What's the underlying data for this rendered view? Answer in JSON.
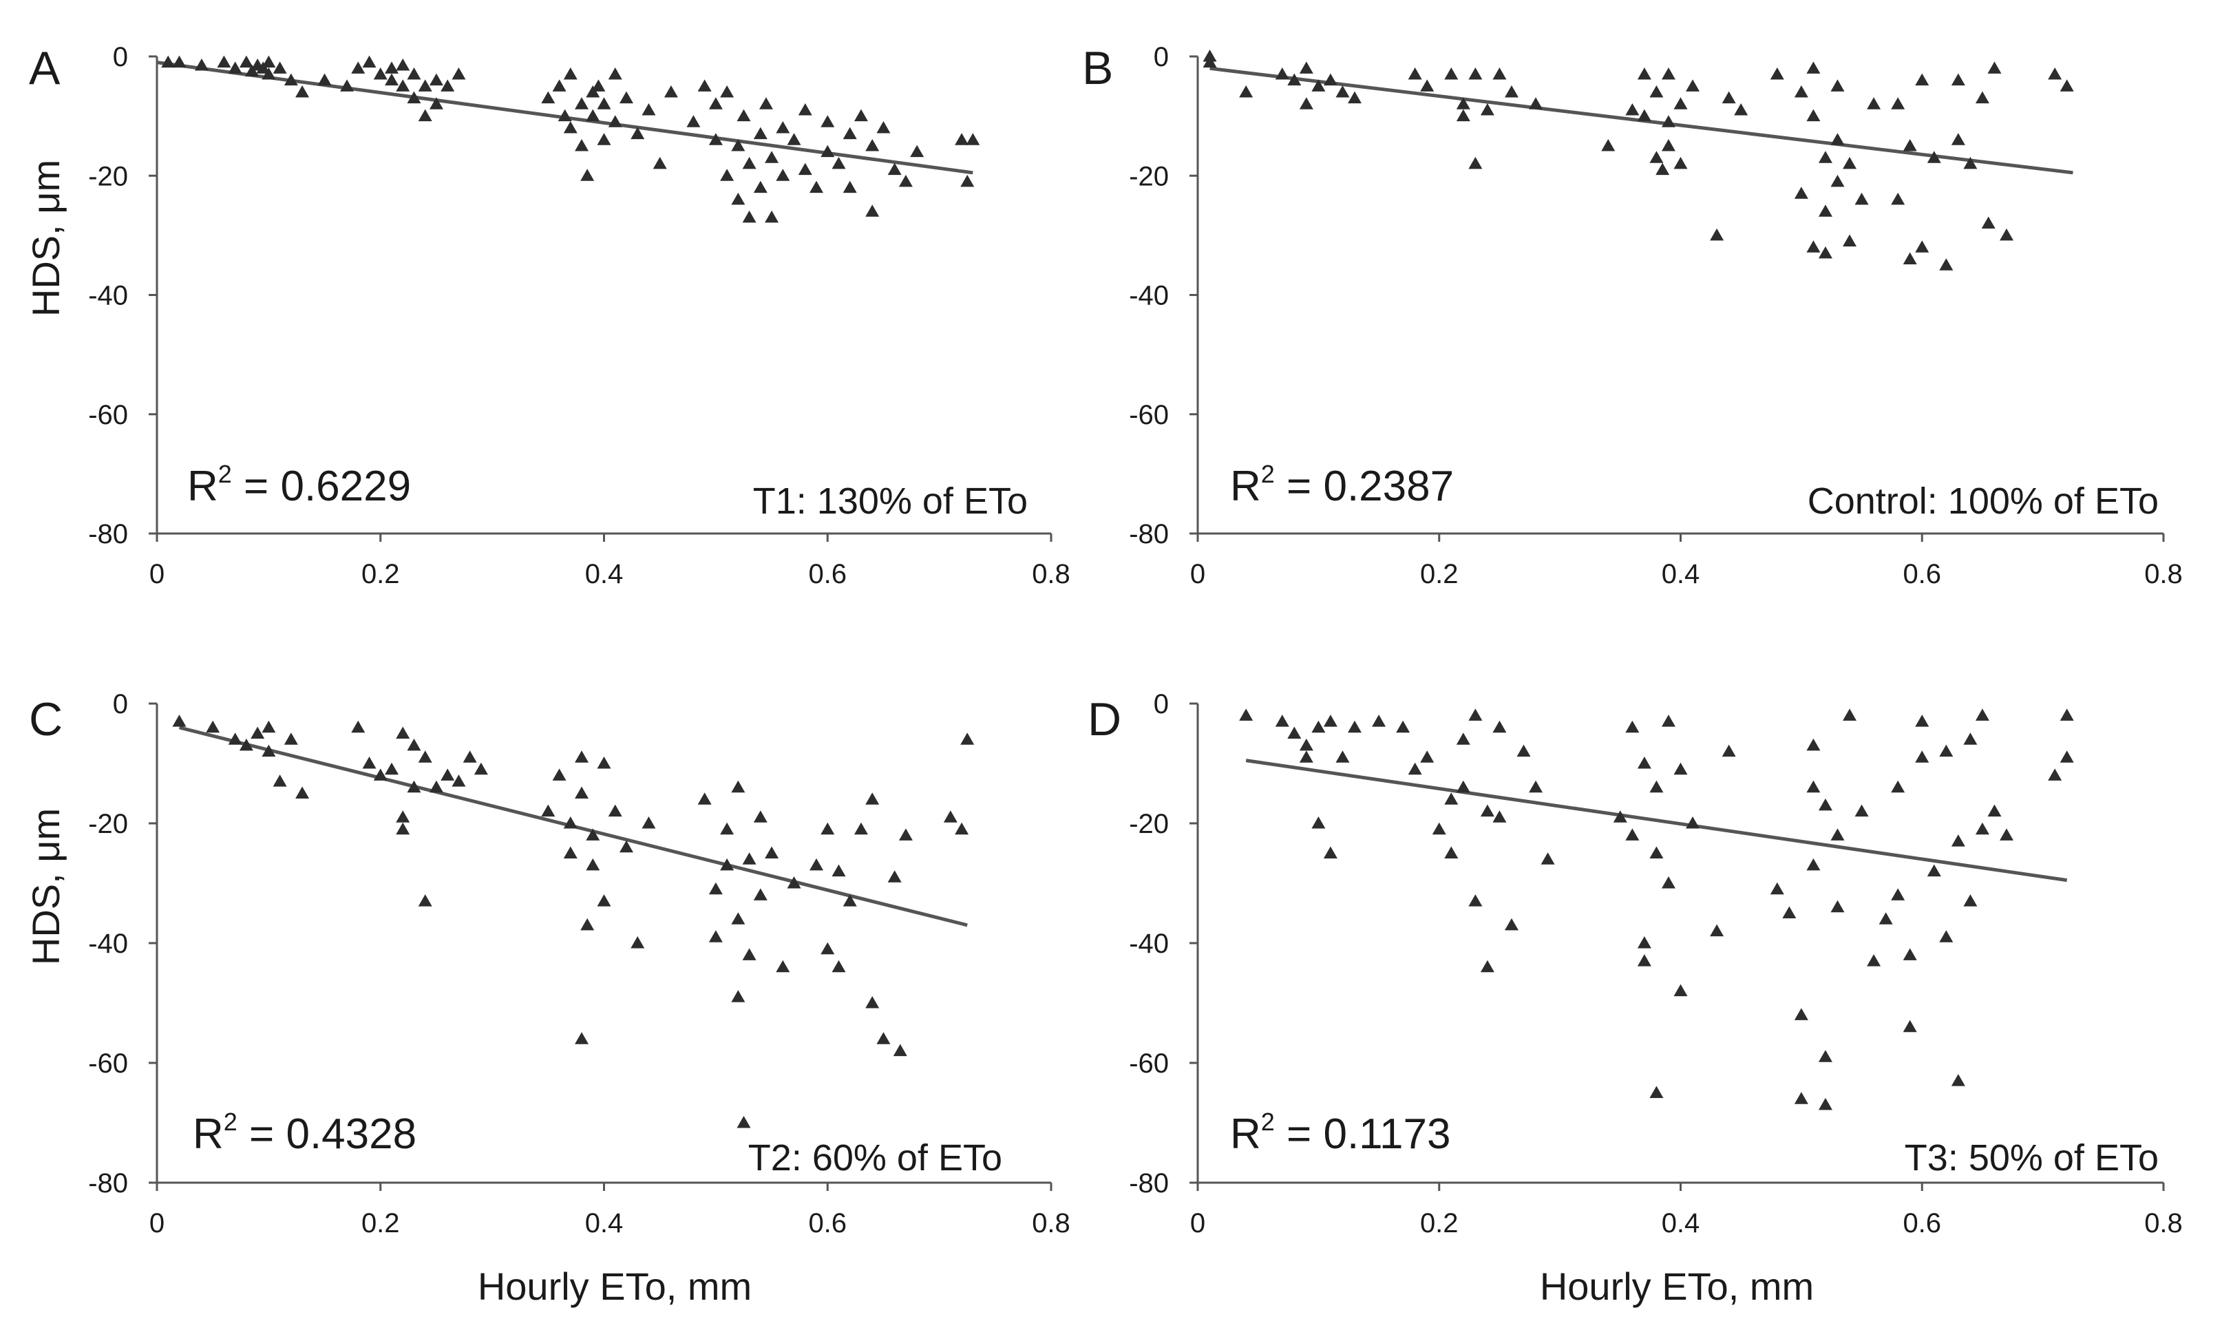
{
  "figure_title": "",
  "chart_data": [
    {
      "type": "scatter",
      "panel": "A",
      "xlabel": "",
      "ylabel": "HDS, μm",
      "xlim": [
        0,
        0.8
      ],
      "ylim": [
        -80,
        0
      ],
      "x_ticks": [
        "0",
        "0.2",
        "0.4",
        "0.6",
        "0.8"
      ],
      "y_ticks": [
        "0",
        "-20",
        "-40",
        "-60",
        "-80"
      ],
      "r2_label": "R² = 0.6229",
      "r2_main": "R",
      "r2_sup": "2",
      "r2_value": " = 0.6229",
      "treatment_label": "T1: 130% of ETo",
      "fit_line": {
        "x": [
          0.0,
          0.73
        ],
        "y": [
          -1.0,
          -19.5
        ]
      },
      "points": [
        [
          0.01,
          -1
        ],
        [
          0.02,
          -1
        ],
        [
          0.04,
          -1.5
        ],
        [
          0.06,
          -1
        ],
        [
          0.07,
          -2
        ],
        [
          0.08,
          -1
        ],
        [
          0.085,
          -2.5
        ],
        [
          0.09,
          -1.5
        ],
        [
          0.095,
          -2
        ],
        [
          0.1,
          -3
        ],
        [
          0.1,
          -1
        ],
        [
          0.11,
          -2
        ],
        [
          0.12,
          -4
        ],
        [
          0.13,
          -6
        ],
        [
          0.15,
          -4
        ],
        [
          0.17,
          -5
        ],
        [
          0.18,
          -2
        ],
        [
          0.19,
          -1
        ],
        [
          0.2,
          -3
        ],
        [
          0.21,
          -4
        ],
        [
          0.21,
          -2
        ],
        [
          0.22,
          -5
        ],
        [
          0.22,
          -1.5
        ],
        [
          0.23,
          -3
        ],
        [
          0.23,
          -7
        ],
        [
          0.24,
          -5
        ],
        [
          0.24,
          -10
        ],
        [
          0.25,
          -4
        ],
        [
          0.25,
          -8
        ],
        [
          0.26,
          -5
        ],
        [
          0.27,
          -3
        ],
        [
          0.35,
          -7
        ],
        [
          0.36,
          -5
        ],
        [
          0.365,
          -10
        ],
        [
          0.37,
          -3
        ],
        [
          0.37,
          -12
        ],
        [
          0.38,
          -8
        ],
        [
          0.38,
          -15
        ],
        [
          0.385,
          -20
        ],
        [
          0.39,
          -6
        ],
        [
          0.39,
          -10
        ],
        [
          0.395,
          -5
        ],
        [
          0.4,
          -14
        ],
        [
          0.4,
          -8
        ],
        [
          0.41,
          -3
        ],
        [
          0.41,
          -11
        ],
        [
          0.42,
          -7
        ],
        [
          0.43,
          -13
        ],
        [
          0.44,
          -9
        ],
        [
          0.45,
          -18
        ],
        [
          0.46,
          -6
        ],
        [
          0.48,
          -11
        ],
        [
          0.49,
          -5
        ],
        [
          0.5,
          -8
        ],
        [
          0.5,
          -14
        ],
        [
          0.51,
          -20
        ],
        [
          0.51,
          -6
        ],
        [
          0.52,
          -15
        ],
        [
          0.52,
          -24
        ],
        [
          0.525,
          -10
        ],
        [
          0.53,
          -18
        ],
        [
          0.53,
          -27
        ],
        [
          0.54,
          -13
        ],
        [
          0.54,
          -22
        ],
        [
          0.545,
          -8
        ],
        [
          0.55,
          -17
        ],
        [
          0.55,
          -27
        ],
        [
          0.56,
          -12
        ],
        [
          0.56,
          -20
        ],
        [
          0.57,
          -14
        ],
        [
          0.58,
          -9
        ],
        [
          0.58,
          -19
        ],
        [
          0.59,
          -22
        ],
        [
          0.6,
          -11
        ],
        [
          0.6,
          -16
        ],
        [
          0.61,
          -18
        ],
        [
          0.62,
          -13
        ],
        [
          0.62,
          -22
        ],
        [
          0.63,
          -10
        ],
        [
          0.64,
          -26
        ],
        [
          0.64,
          -15
        ],
        [
          0.65,
          -12
        ],
        [
          0.66,
          -19
        ],
        [
          0.67,
          -21
        ],
        [
          0.68,
          -16
        ],
        [
          0.72,
          -14
        ],
        [
          0.73,
          -14
        ],
        [
          0.725,
          -21
        ]
      ]
    },
    {
      "type": "scatter",
      "panel": "B",
      "xlabel": "",
      "ylabel": "",
      "xlim": [
        0,
        0.8
      ],
      "ylim": [
        -80,
        0
      ],
      "x_ticks": [
        "0",
        "0.2",
        "0.4",
        "0.6",
        "0.8"
      ],
      "y_ticks": [
        "0",
        "-20",
        "-40",
        "-60",
        "-80"
      ],
      "r2_label": "R² = 0.2387",
      "r2_main": "R",
      "r2_sup": "2",
      "r2_value": " = 0.2387",
      "treatment_label": "Control: 100% of ETo",
      "fit_line": {
        "x": [
          0.01,
          0.725
        ],
        "y": [
          -2.0,
          -19.5
        ]
      },
      "points": [
        [
          0.01,
          -1
        ],
        [
          0.01,
          0
        ],
        [
          0.04,
          -6
        ],
        [
          0.07,
          -3
        ],
        [
          0.08,
          -4
        ],
        [
          0.09,
          -2
        ],
        [
          0.09,
          -8
        ],
        [
          0.1,
          -5
        ],
        [
          0.11,
          -4
        ],
        [
          0.12,
          -6
        ],
        [
          0.13,
          -7
        ],
        [
          0.18,
          -3
        ],
        [
          0.19,
          -5
        ],
        [
          0.21,
          -3
        ],
        [
          0.22,
          -8
        ],
        [
          0.22,
          -10
        ],
        [
          0.23,
          -3
        ],
        [
          0.23,
          -18
        ],
        [
          0.24,
          -9
        ],
        [
          0.25,
          -3
        ],
        [
          0.26,
          -6
        ],
        [
          0.28,
          -8
        ],
        [
          0.34,
          -15
        ],
        [
          0.36,
          -9
        ],
        [
          0.37,
          -3
        ],
        [
          0.37,
          -10
        ],
        [
          0.38,
          -6
        ],
        [
          0.38,
          -17
        ],
        [
          0.385,
          -19
        ],
        [
          0.39,
          -3
        ],
        [
          0.39,
          -11
        ],
        [
          0.39,
          -15
        ],
        [
          0.4,
          -8
        ],
        [
          0.4,
          -18
        ],
        [
          0.41,
          -5
        ],
        [
          0.43,
          -30
        ],
        [
          0.44,
          -7
        ],
        [
          0.45,
          -9
        ],
        [
          0.48,
          -3
        ],
        [
          0.5,
          -6
        ],
        [
          0.5,
          -23
        ],
        [
          0.51,
          -2
        ],
        [
          0.51,
          -32
        ],
        [
          0.51,
          -10
        ],
        [
          0.52,
          -17
        ],
        [
          0.52,
          -26
        ],
        [
          0.52,
          -33
        ],
        [
          0.53,
          -14
        ],
        [
          0.53,
          -21
        ],
        [
          0.53,
          -5
        ],
        [
          0.54,
          -18
        ],
        [
          0.54,
          -31
        ],
        [
          0.55,
          -24
        ],
        [
          0.56,
          -8
        ],
        [
          0.58,
          -8
        ],
        [
          0.58,
          -24
        ],
        [
          0.59,
          -15
        ],
        [
          0.59,
          -34
        ],
        [
          0.6,
          -32
        ],
        [
          0.6,
          -4
        ],
        [
          0.61,
          -17
        ],
        [
          0.62,
          -35
        ],
        [
          0.63,
          -14
        ],
        [
          0.63,
          -4
        ],
        [
          0.64,
          -18
        ],
        [
          0.65,
          -7
        ],
        [
          0.655,
          -28
        ],
        [
          0.66,
          -2
        ],
        [
          0.67,
          -30
        ],
        [
          0.71,
          -3
        ],
        [
          0.72,
          -5
        ]
      ]
    },
    {
      "type": "scatter",
      "panel": "C",
      "xlabel": "Hourly ETo, mm",
      "ylabel": "HDS, μm",
      "xlim": [
        0,
        0.8
      ],
      "ylim": [
        -80,
        0
      ],
      "x_ticks": [
        "0",
        "0.2",
        "0.4",
        "0.6",
        "0.8"
      ],
      "y_ticks": [
        "0",
        "-20",
        "-40",
        "-60",
        "-80"
      ],
      "r2_label": "R² = 0.4328",
      "r2_main": "R",
      "r2_sup": "2",
      "r2_value": " = 0.4328",
      "treatment_label": "T2: 60% of ETo",
      "fit_line": {
        "x": [
          0.02,
          0.725
        ],
        "y": [
          -4.0,
          -37.0
        ]
      },
      "points": [
        [
          0.02,
          -3
        ],
        [
          0.05,
          -4
        ],
        [
          0.07,
          -6
        ],
        [
          0.08,
          -7
        ],
        [
          0.09,
          -5
        ],
        [
          0.1,
          -4
        ],
        [
          0.1,
          -8
        ],
        [
          0.11,
          -13
        ],
        [
          0.12,
          -6
        ],
        [
          0.13,
          -15
        ],
        [
          0.18,
          -4
        ],
        [
          0.19,
          -10
        ],
        [
          0.2,
          -12
        ],
        [
          0.21,
          -11
        ],
        [
          0.22,
          -5
        ],
        [
          0.22,
          -19
        ],
        [
          0.22,
          -21
        ],
        [
          0.23,
          -7
        ],
        [
          0.23,
          -14
        ],
        [
          0.24,
          -9
        ],
        [
          0.24,
          -33
        ],
        [
          0.25,
          -14
        ],
        [
          0.26,
          -12
        ],
        [
          0.27,
          -13
        ],
        [
          0.28,
          -9
        ],
        [
          0.29,
          -11
        ],
        [
          0.35,
          -18
        ],
        [
          0.36,
          -12
        ],
        [
          0.37,
          -20
        ],
        [
          0.37,
          -25
        ],
        [
          0.38,
          -9
        ],
        [
          0.38,
          -15
        ],
        [
          0.38,
          -56
        ],
        [
          0.385,
          -37
        ],
        [
          0.39,
          -22
        ],
        [
          0.39,
          -27
        ],
        [
          0.4,
          -10
        ],
        [
          0.4,
          -33
        ],
        [
          0.41,
          -18
        ],
        [
          0.42,
          -24
        ],
        [
          0.43,
          -40
        ],
        [
          0.44,
          -20
        ],
        [
          0.49,
          -16
        ],
        [
          0.5,
          -31
        ],
        [
          0.5,
          -39
        ],
        [
          0.51,
          -21
        ],
        [
          0.51,
          -27
        ],
        [
          0.52,
          -14
        ],
        [
          0.52,
          -36
        ],
        [
          0.52,
          -49
        ],
        [
          0.525,
          -70
        ],
        [
          0.53,
          -26
        ],
        [
          0.53,
          -42
        ],
        [
          0.54,
          -19
        ],
        [
          0.54,
          -32
        ],
        [
          0.55,
          -25
        ],
        [
          0.56,
          -44
        ],
        [
          0.57,
          -30
        ],
        [
          0.59,
          -27
        ],
        [
          0.6,
          -41
        ],
        [
          0.6,
          -21
        ],
        [
          0.61,
          -44
        ],
        [
          0.61,
          -28
        ],
        [
          0.62,
          -33
        ],
        [
          0.63,
          -21
        ],
        [
          0.64,
          -50
        ],
        [
          0.64,
          -16
        ],
        [
          0.65,
          -56
        ],
        [
          0.66,
          -29
        ],
        [
          0.665,
          -58
        ],
        [
          0.67,
          -22
        ],
        [
          0.71,
          -19
        ],
        [
          0.72,
          -21
        ],
        [
          0.725,
          -6
        ]
      ]
    },
    {
      "type": "scatter",
      "panel": "D",
      "xlabel": "Hourly ETo, mm",
      "ylabel": "",
      "xlim": [
        0,
        0.8
      ],
      "ylim": [
        -80,
        0
      ],
      "x_ticks": [
        "0",
        "0.2",
        "0.4",
        "0.6",
        "0.8"
      ],
      "y_ticks": [
        "0",
        "-20",
        "-40",
        "-60",
        "-80"
      ],
      "r2_label": "R² = 0.1173",
      "r2_main": "R",
      "r2_sup": "2",
      "r2_value": " = 0.1173",
      "treatment_label": "T3: 50% of ETo",
      "fit_line": {
        "x": [
          0.04,
          0.72
        ],
        "y": [
          -9.5,
          -29.5
        ]
      },
      "points": [
        [
          0.04,
          -2
        ],
        [
          0.07,
          -3
        ],
        [
          0.08,
          -5
        ],
        [
          0.09,
          -7
        ],
        [
          0.09,
          -9
        ],
        [
          0.1,
          -4
        ],
        [
          0.1,
          -20
        ],
        [
          0.11,
          -3
        ],
        [
          0.11,
          -25
        ],
        [
          0.12,
          -9
        ],
        [
          0.13,
          -4
        ],
        [
          0.15,
          -3
        ],
        [
          0.17,
          -4
        ],
        [
          0.18,
          -11
        ],
        [
          0.19,
          -9
        ],
        [
          0.2,
          -21
        ],
        [
          0.21,
          -16
        ],
        [
          0.21,
          -25
        ],
        [
          0.22,
          -6
        ],
        [
          0.22,
          -14
        ],
        [
          0.23,
          -2
        ],
        [
          0.23,
          -33
        ],
        [
          0.24,
          -18
        ],
        [
          0.24,
          -44
        ],
        [
          0.25,
          -4
        ],
        [
          0.25,
          -19
        ],
        [
          0.26,
          -37
        ],
        [
          0.27,
          -8
        ],
        [
          0.28,
          -14
        ],
        [
          0.29,
          -26
        ],
        [
          0.35,
          -19
        ],
        [
          0.36,
          -4
        ],
        [
          0.36,
          -22
        ],
        [
          0.37,
          -10
        ],
        [
          0.37,
          -40
        ],
        [
          0.37,
          -43
        ],
        [
          0.38,
          -14
        ],
        [
          0.38,
          -25
        ],
        [
          0.38,
          -65
        ],
        [
          0.39,
          -3
        ],
        [
          0.39,
          -30
        ],
        [
          0.4,
          -48
        ],
        [
          0.4,
          -11
        ],
        [
          0.41,
          -20
        ],
        [
          0.43,
          -38
        ],
        [
          0.44,
          -8
        ],
        [
          0.48,
          -31
        ],
        [
          0.49,
          -35
        ],
        [
          0.5,
          -52
        ],
        [
          0.5,
          -66
        ],
        [
          0.51,
          -14
        ],
        [
          0.51,
          -27
        ],
        [
          0.51,
          -7
        ],
        [
          0.52,
          -59
        ],
        [
          0.52,
          -67
        ],
        [
          0.52,
          -17
        ],
        [
          0.53,
          -22
        ],
        [
          0.53,
          -34
        ],
        [
          0.54,
          -2
        ],
        [
          0.55,
          -18
        ],
        [
          0.56,
          -43
        ],
        [
          0.57,
          -36
        ],
        [
          0.58,
          -32
        ],
        [
          0.58,
          -14
        ],
        [
          0.59,
          -54
        ],
        [
          0.59,
          -42
        ],
        [
          0.6,
          -9
        ],
        [
          0.6,
          -3
        ],
        [
          0.61,
          -28
        ],
        [
          0.62,
          -39
        ],
        [
          0.62,
          -8
        ],
        [
          0.63,
          -63
        ],
        [
          0.63,
          -23
        ],
        [
          0.64,
          -6
        ],
        [
          0.64,
          -33
        ],
        [
          0.65,
          -21
        ],
        [
          0.65,
          -2
        ],
        [
          0.66,
          -18
        ],
        [
          0.67,
          -22
        ],
        [
          0.71,
          -12
        ],
        [
          0.72,
          -2
        ],
        [
          0.72,
          -9
        ]
      ]
    }
  ]
}
